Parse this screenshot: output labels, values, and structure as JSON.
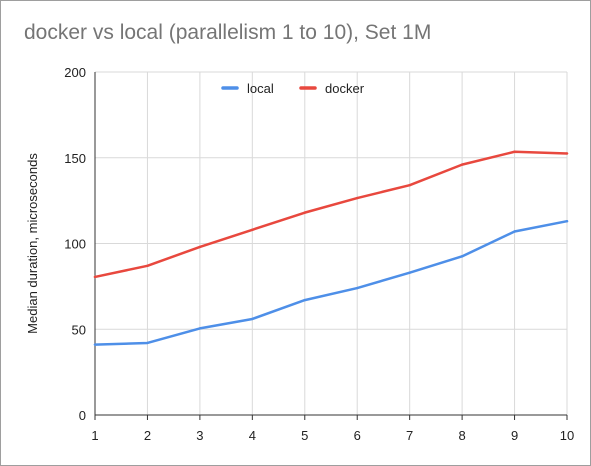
{
  "chart_data": {
    "type": "line",
    "title": "docker vs local (parallelism 1 to 10), Set 1M",
    "xlabel": "",
    "ylabel": "Median duration, microseconds",
    "x": [
      1,
      2,
      3,
      4,
      5,
      6,
      7,
      8,
      9,
      10
    ],
    "ylim": [
      0,
      200
    ],
    "yticks": [
      0,
      50,
      100,
      150,
      200
    ],
    "grid": true,
    "legend_position": "top",
    "series": [
      {
        "name": "local",
        "color": "#4e8fe8",
        "values": [
          41,
          42,
          50.5,
          56,
          67,
          74,
          83,
          92.5,
          107,
          113
        ]
      },
      {
        "name": "docker",
        "color": "#e8483e",
        "values": [
          80.5,
          87,
          98,
          108,
          118,
          126.5,
          134,
          146,
          153.5,
          152.5
        ]
      }
    ]
  }
}
